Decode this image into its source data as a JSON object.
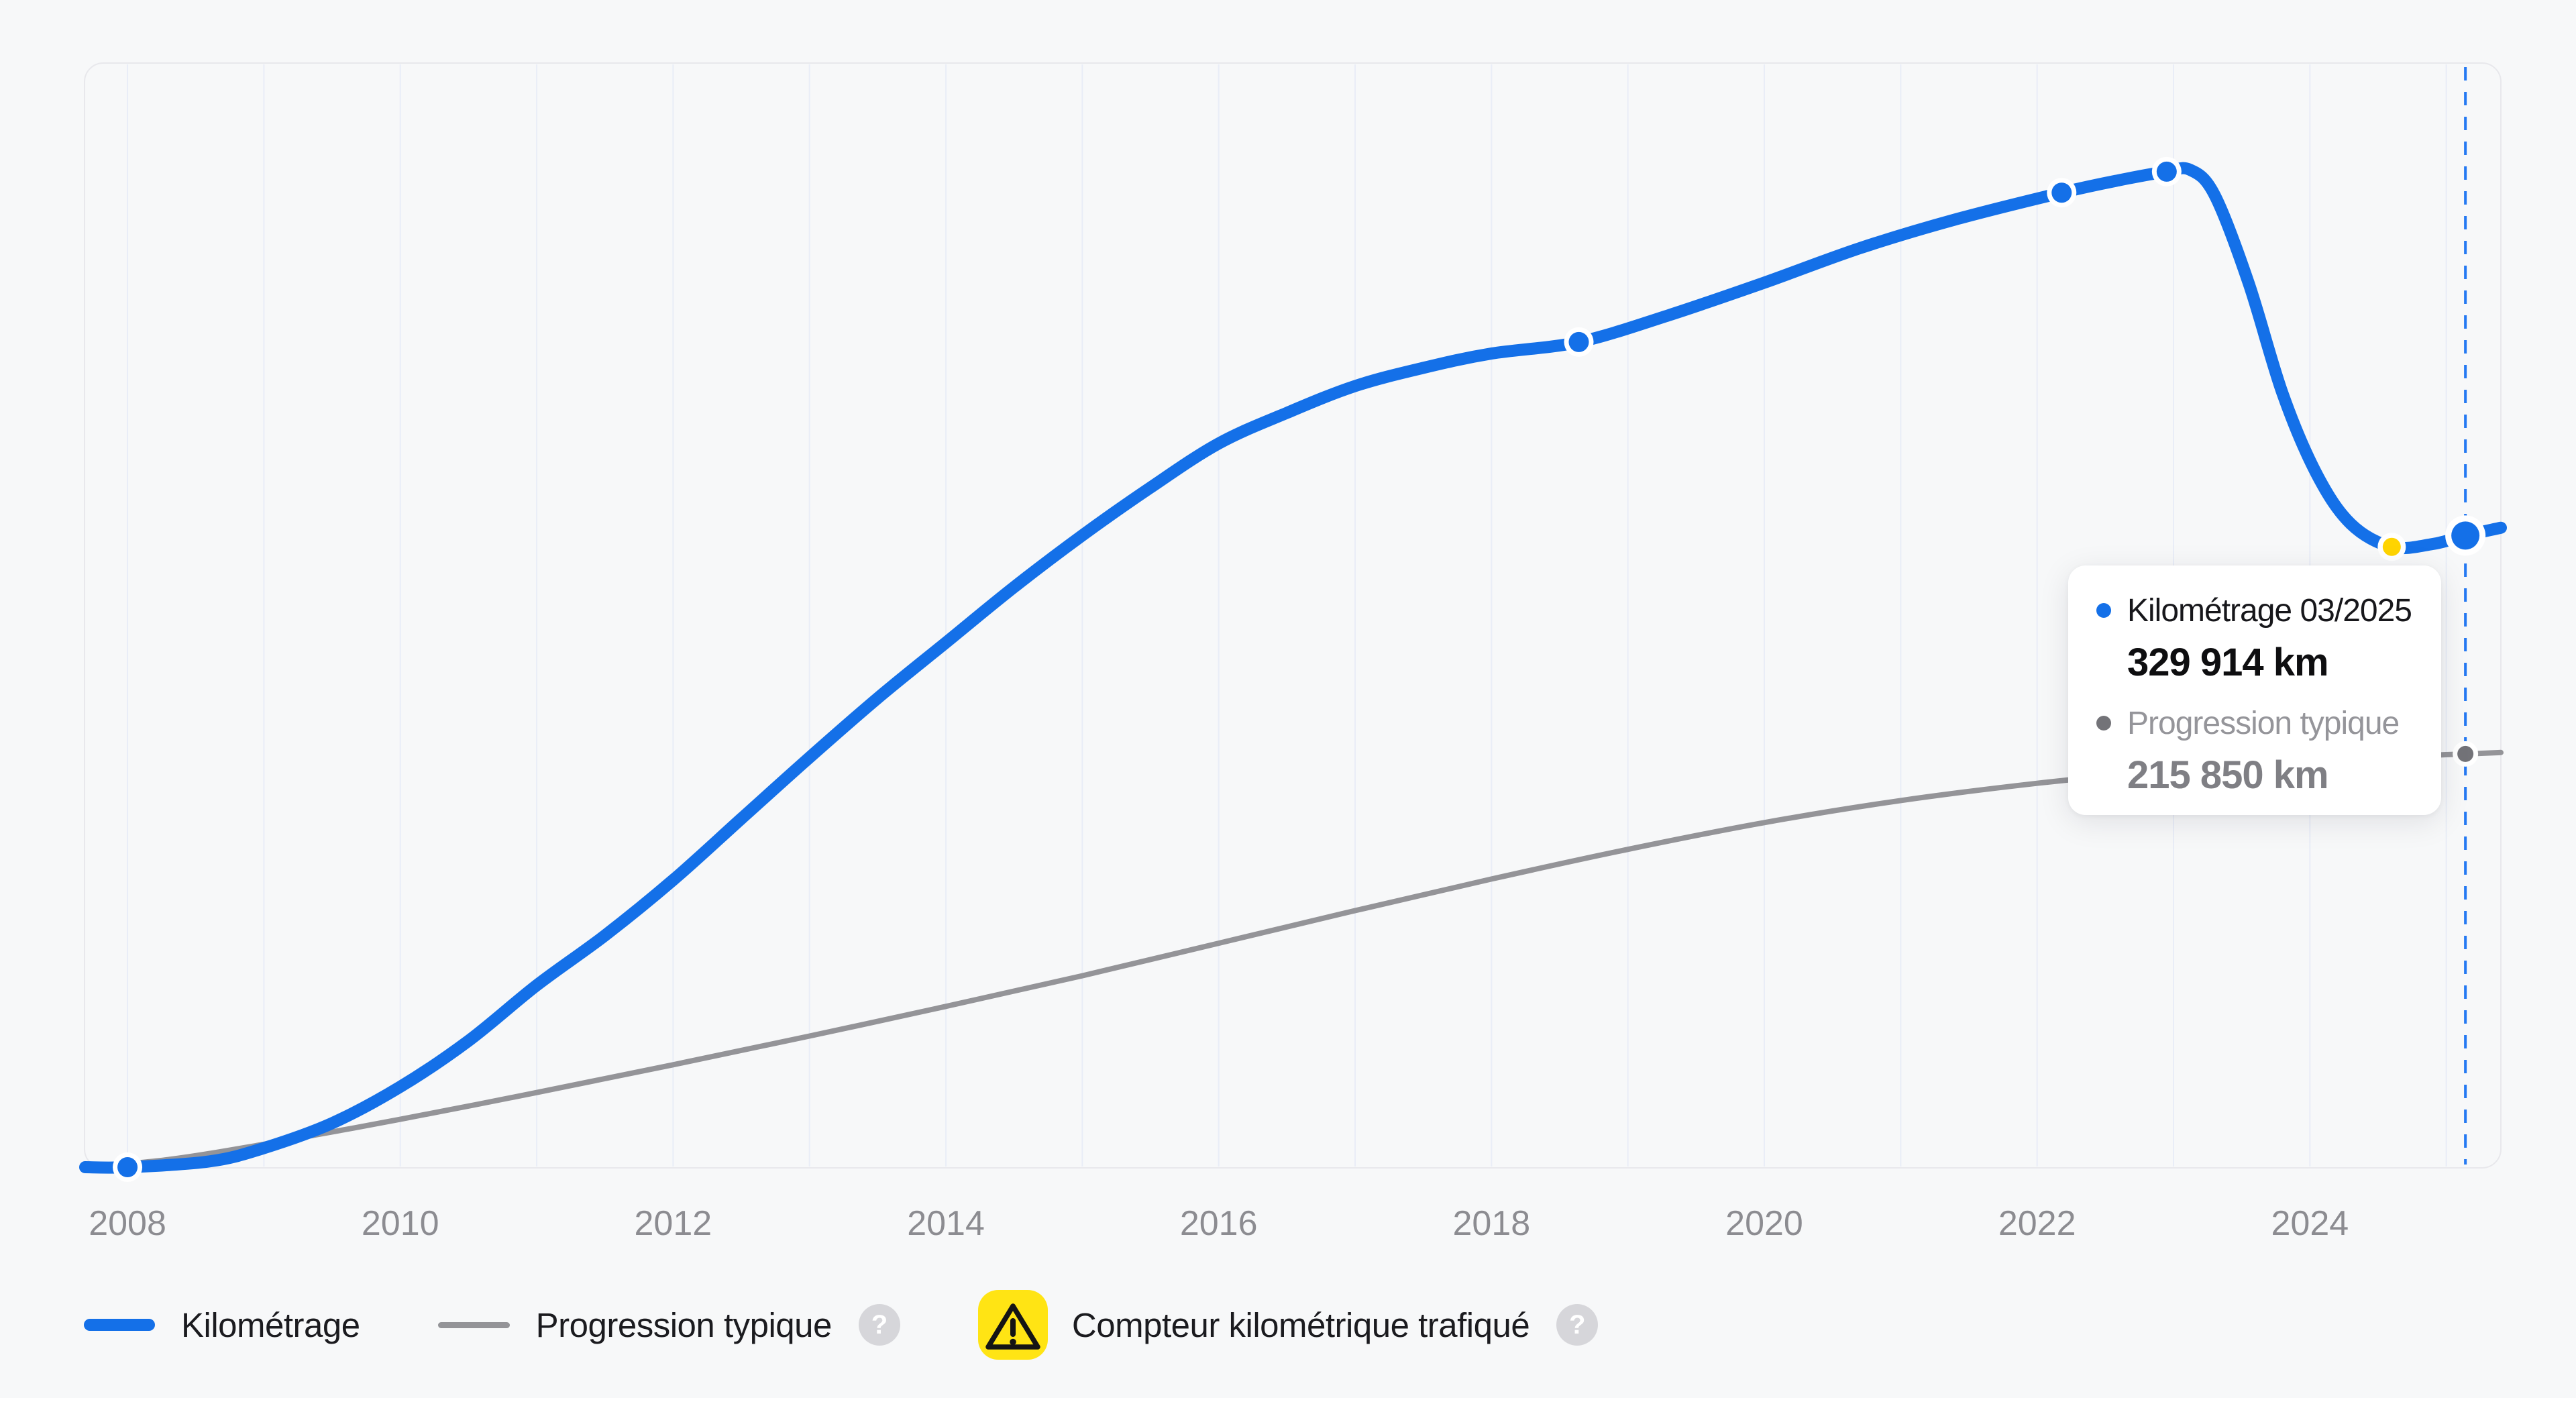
{
  "colors": {
    "kilometrage_blue": "#1470e8",
    "typical_gray": "#949498",
    "tampered_yellow": "#ffd400",
    "legend_yellow_bg": "#ffe414",
    "now_line_blue": "#2579f2",
    "grid_line": "#e9edf7",
    "frame_border": "#e8e8ec",
    "axis_label": "#8c8c91",
    "tooltip_bullet_gray": "#737378"
  },
  "chart_data": {
    "type": "line",
    "title": "",
    "xlabel": "",
    "ylabel": "",
    "x_axis": {
      "ticks": [
        2008,
        2010,
        2012,
        2014,
        2016,
        2018,
        2020,
        2022,
        2024
      ],
      "grid_years": [
        2008,
        2009,
        2010,
        2011,
        2012,
        2013,
        2014,
        2015,
        2016,
        2017,
        2018,
        2019,
        2020,
        2021,
        2022,
        2023,
        2024,
        2025
      ],
      "range_years": [
        2007.685,
        2025.4
      ]
    },
    "y_axis": {
      "range_km": [
        0,
        576000
      ],
      "grid": "off"
    },
    "legend_position": "bottom",
    "now_marker": {
      "year": 2025.14,
      "label": "03/2025",
      "style": "dashed"
    },
    "series": [
      {
        "name": "Kilométrage",
        "width": 18,
        "points": [
          [
            2007.69,
            0
          ],
          [
            2008,
            0
          ],
          [
            2008.6,
            3000
          ],
          [
            2009,
            10000
          ],
          [
            2009.5,
            23000
          ],
          [
            2010,
            42000
          ],
          [
            2010.5,
            66000
          ],
          [
            2011,
            95000
          ],
          [
            2011.5,
            121000
          ],
          [
            2012,
            150000
          ],
          [
            2012.5,
            182000
          ],
          [
            2013,
            214000
          ],
          [
            2013.5,
            245000
          ],
          [
            2014,
            274000
          ],
          [
            2014.5,
            303000
          ],
          [
            2015,
            330000
          ],
          [
            2015.5,
            355000
          ],
          [
            2016,
            378000
          ],
          [
            2016.5,
            394000
          ],
          [
            2017,
            408000
          ],
          [
            2017.5,
            417500
          ],
          [
            2018,
            425000
          ],
          [
            2018.64,
            431000
          ],
          [
            2019.3,
            445000
          ],
          [
            2020,
            462000
          ],
          [
            2020.7,
            480000
          ],
          [
            2021.4,
            495000
          ],
          [
            2022.18,
            509000
          ],
          [
            2022.6,
            515500
          ],
          [
            2022.95,
            520000
          ],
          [
            2023.12,
            521000
          ],
          [
            2023.3,
            508000
          ],
          [
            2023.55,
            462000
          ],
          [
            2023.8,
            404000
          ],
          [
            2024.05,
            362000
          ],
          [
            2024.3,
            336000
          ],
          [
            2024.6,
            324000
          ],
          [
            2024.9,
            325500
          ],
          [
            2025.14,
            329914
          ],
          [
            2025.4,
            334000
          ]
        ]
      },
      {
        "name": "Progression typique",
        "width": 8,
        "points": [
          [
            2007.69,
            0
          ],
          [
            2008.3,
            4000
          ],
          [
            2009,
            12000
          ],
          [
            2010,
            25000
          ],
          [
            2011,
            39000
          ],
          [
            2012,
            53500
          ],
          [
            2013,
            68500
          ],
          [
            2014,
            84000
          ],
          [
            2015,
            100000
          ],
          [
            2016,
            117000
          ],
          [
            2017,
            134000
          ],
          [
            2018,
            150500
          ],
          [
            2019,
            166000
          ],
          [
            2020,
            180000
          ],
          [
            2021,
            191500
          ],
          [
            2022,
            200500
          ],
          [
            2023,
            207500
          ],
          [
            2024,
            212500
          ],
          [
            2025.14,
            215850
          ],
          [
            2025.4,
            216600
          ]
        ]
      }
    ],
    "markers": [
      {
        "series": 0,
        "year": 2008,
        "km": 0,
        "size": "small"
      },
      {
        "series": 0,
        "year": 2018.64,
        "km": 431000,
        "size": "small"
      },
      {
        "series": 0,
        "year": 2022.18,
        "km": 509000,
        "size": "small"
      },
      {
        "series": 0,
        "year": 2022.95,
        "km": 520000,
        "size": "small"
      },
      {
        "series": 0,
        "year": 2024.6,
        "km": 324000,
        "size": "small-yellow",
        "meaning": "compteur-trafique"
      },
      {
        "series": 0,
        "year": 2025.14,
        "km": 329914,
        "size": "large"
      },
      {
        "series": 1,
        "year": 2025.14,
        "km": 215850,
        "size": "medium-gray"
      }
    ]
  },
  "tooltip": {
    "rows": [
      {
        "label": "Kilométrage 03/2025",
        "value": "329 914 km"
      },
      {
        "label": "Progression typique",
        "value": "215 850 km"
      }
    ]
  },
  "legend": {
    "help_glyph": "?",
    "items": [
      {
        "label": "Kilométrage"
      },
      {
        "label": "Progression typique"
      },
      {
        "label": "Compteur kilométrique trafiqué"
      }
    ]
  }
}
